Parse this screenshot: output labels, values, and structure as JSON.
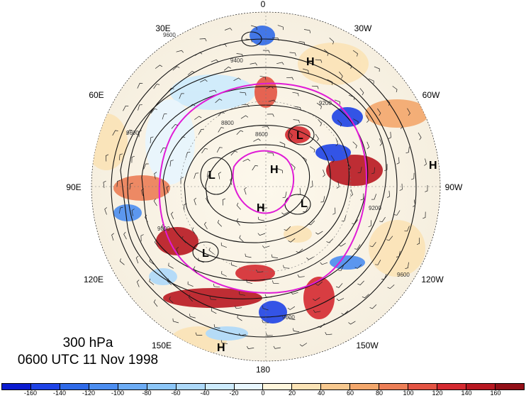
{
  "title": {
    "level": "300 hPa",
    "datetime": "0600 UTC 11 Nov 1998"
  },
  "map": {
    "projection": "north polar stereographic",
    "longitude_labels": [
      "0",
      "30W",
      "60W",
      "90W",
      "120W",
      "150W",
      "180",
      "150E",
      "120E",
      "90E",
      "60E",
      "30E"
    ],
    "pressure_centers": [
      {
        "label": "H",
        "location": "north Atlantic"
      },
      {
        "label": "L",
        "location": "Baffin Bay"
      },
      {
        "label": "H",
        "location": "Arctic Ocean"
      },
      {
        "label": "L",
        "location": "central Siberia"
      },
      {
        "label": "H",
        "location": "Canadian Arctic"
      },
      {
        "label": "L",
        "location": "western Canada"
      },
      {
        "label": "L",
        "location": "east Asia"
      },
      {
        "label": "H",
        "location": "east Pacific"
      },
      {
        "label": "H",
        "location": "north Pacific"
      }
    ],
    "contour_labels": [
      "9600",
      "9400",
      "9200",
      "9000",
      "8800",
      "8600"
    ],
    "fields": [
      "geopotential height contours",
      "wind barbs",
      "shaded anomaly",
      "magenta reference contours"
    ]
  },
  "colorbar": {
    "ticks": [
      "-160",
      "-140",
      "-120",
      "-100",
      "-80",
      "-60",
      "-40",
      "-20",
      "0",
      "20",
      "40",
      "60",
      "80",
      "100",
      "120",
      "140",
      "160"
    ],
    "colors": [
      "#0a1bd0",
      "#1e43e6",
      "#2f6ae8",
      "#4b8df0",
      "#6cacf5",
      "#8cc6f8",
      "#add9fa",
      "#cdebfd",
      "#e7f6fe",
      "#fff6dc",
      "#fbe3b6",
      "#f7c88f",
      "#f3a76c",
      "#ec7e56",
      "#e35443",
      "#d42a30",
      "#b81821",
      "#920f17"
    ]
  }
}
